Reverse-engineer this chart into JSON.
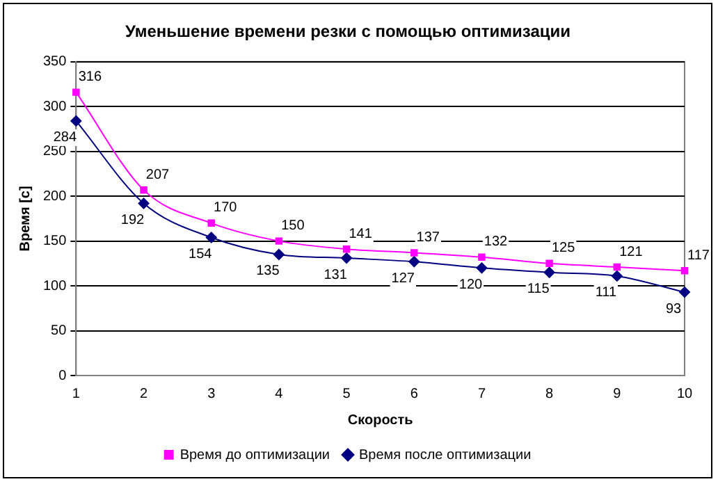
{
  "chart_data": {
    "type": "line",
    "title": "Уменьшение времени резки с помощью оптимизации",
    "xlabel": "Скорость",
    "ylabel": "Время [c]",
    "categories": [
      "1",
      "2",
      "3",
      "4",
      "5",
      "6",
      "7",
      "8",
      "9",
      "10"
    ],
    "series": [
      {
        "name": "Время до оптимизации",
        "color": "#ff00ff",
        "marker": "square",
        "values": [
          316,
          207,
          170,
          150,
          141,
          137,
          132,
          125,
          121,
          117
        ]
      },
      {
        "name": "Время после оптимизации",
        "color": "#000080",
        "marker": "diamond",
        "values": [
          284,
          192,
          154,
          135,
          131,
          127,
          120,
          115,
          111,
          93
        ]
      }
    ],
    "ylim": [
      0,
      350
    ],
    "yticks": [
      0,
      50,
      100,
      150,
      200,
      250,
      300,
      350
    ],
    "grid": "y",
    "legend": "bottom",
    "data_labels": true
  }
}
